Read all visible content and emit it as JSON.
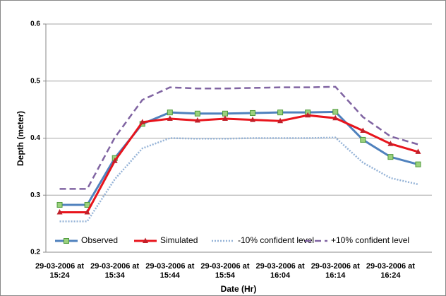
{
  "chart_data": {
    "type": "line",
    "xlabel": "Date (Hr)",
    "ylabel": "Depth (meter)",
    "categories": [
      "29-03-2006 at 15:24",
      null,
      "29-03-2006 at 15:34",
      null,
      "29-03-2006 at 15:44",
      null,
      "29-03-2006 at 15:54",
      null,
      "29-03-2006 at 16:04",
      null,
      "29-03-2006 at 16:14",
      null,
      "29-03-2006 at 16:24",
      null
    ],
    "ylim": [
      0.2,
      0.6
    ],
    "yticks": [
      0.2,
      0.3,
      0.4,
      0.5,
      0.6
    ],
    "grid": true,
    "legend": "bottom",
    "series": [
      {
        "name": "Observed",
        "color": "#4f81bd",
        "marker": "square",
        "dash": "solid",
        "values": [
          0.283,
          0.283,
          0.365,
          0.425,
          0.445,
          0.443,
          0.443,
          0.444,
          0.445,
          0.445,
          0.446,
          0.397,
          0.367,
          0.354
        ]
      },
      {
        "name": "Simulated",
        "color": "#e8141c",
        "marker": "triangle",
        "dash": "solid",
        "values": [
          0.27,
          0.27,
          0.36,
          0.428,
          0.434,
          0.431,
          0.434,
          0.432,
          0.43,
          0.44,
          0.435,
          0.413,
          0.39,
          0.376
        ]
      },
      {
        "name": "-10% confident level",
        "color": "#95b3d7",
        "marker": "none",
        "dash": "dotted",
        "values": [
          0.254,
          0.254,
          0.328,
          0.382,
          0.4,
          0.399,
          0.399,
          0.4,
          0.4,
          0.4,
          0.401,
          0.357,
          0.33,
          0.319
        ]
      },
      {
        "name": "+10% confident level",
        "color": "#8064a2",
        "marker": "none",
        "dash": "dashed",
        "values": [
          0.311,
          0.311,
          0.401,
          0.467,
          0.489,
          0.487,
          0.487,
          0.488,
          0.489,
          0.489,
          0.49,
          0.437,
          0.403,
          0.389
        ]
      }
    ]
  }
}
